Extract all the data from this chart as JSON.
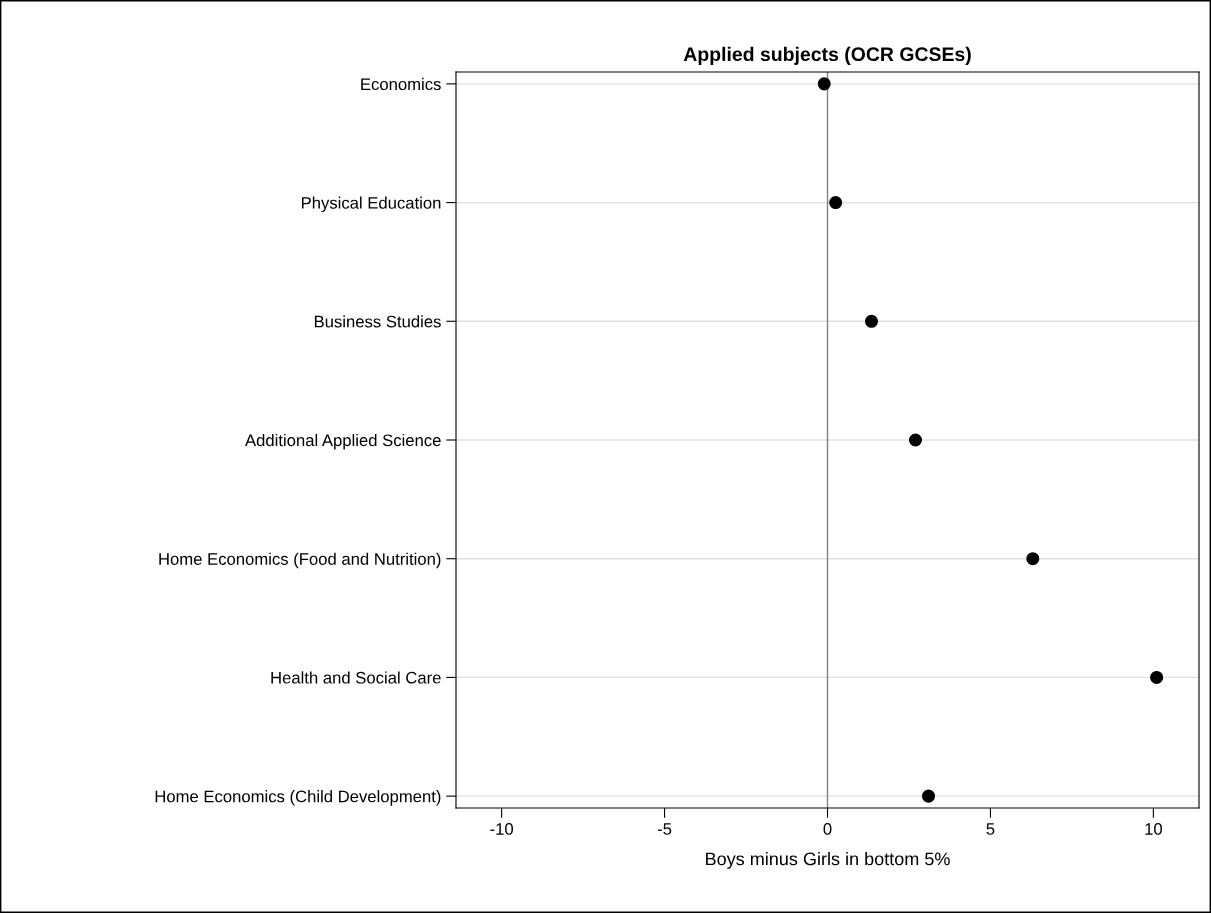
{
  "chart_data": {
    "type": "scatter",
    "title": "Applied subjects (OCR GCSEs)",
    "xlabel": "Boys minus Girls in bottom 5%",
    "orientation": "horizontal",
    "categories": [
      "Economics",
      "Physical Education",
      "Business Studies",
      "Additional Applied Science",
      "Home Economics (Food and Nutrition)",
      "Health and Social Care",
      "Home Economics (Child Development)"
    ],
    "values": [
      -0.1,
      0.25,
      1.35,
      2.7,
      6.3,
      10.1,
      3.1
    ],
    "color": "#000000",
    "marker": "circle",
    "xlim": [
      -11.4,
      11.4
    ],
    "xticks": [
      -10,
      -5,
      0,
      5,
      10
    ],
    "ref_lines": [
      {
        "axis": "x",
        "value": 0,
        "color": "#808080"
      }
    ],
    "grid": "y",
    "legend": false
  }
}
